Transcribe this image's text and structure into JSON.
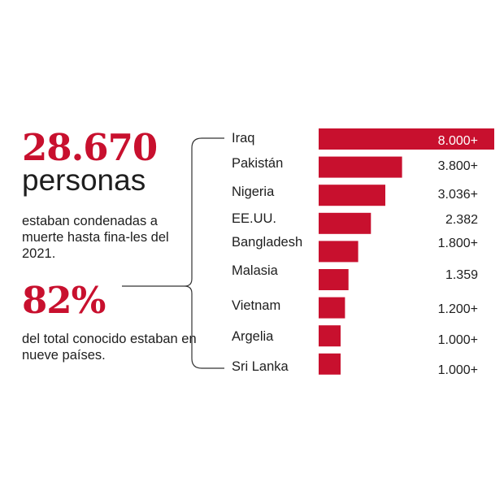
{
  "summary": {
    "headline_number": "28.670",
    "headline_word": "personas",
    "headline_text": "estaban condenadas a muerte hasta fina-les del 2021.",
    "share_number": "82%",
    "share_text": "del total conocido estaban en nueve países."
  },
  "colors": {
    "accent": "#c8102e",
    "text": "#1e1e1e"
  },
  "chart_data": {
    "type": "bar",
    "orientation": "horizontal",
    "categories": [
      "Iraq",
      "Pakistán",
      "Nigeria",
      "EE.UU.",
      "Bangladesh",
      "Malasia",
      "Vietnam",
      "Argelia",
      "Sri Lanka"
    ],
    "values": [
      8000,
      3800,
      3036,
      2382,
      1800,
      1359,
      1200,
      1000,
      1000
    ],
    "value_labels": [
      "8.000+",
      "3.800+",
      "3.036+",
      "2.382",
      "1.800+",
      "1.359",
      "1.200+",
      "1.000+",
      "1.000+"
    ],
    "title": "",
    "xlabel": "",
    "ylabel": "",
    "grid": false
  }
}
